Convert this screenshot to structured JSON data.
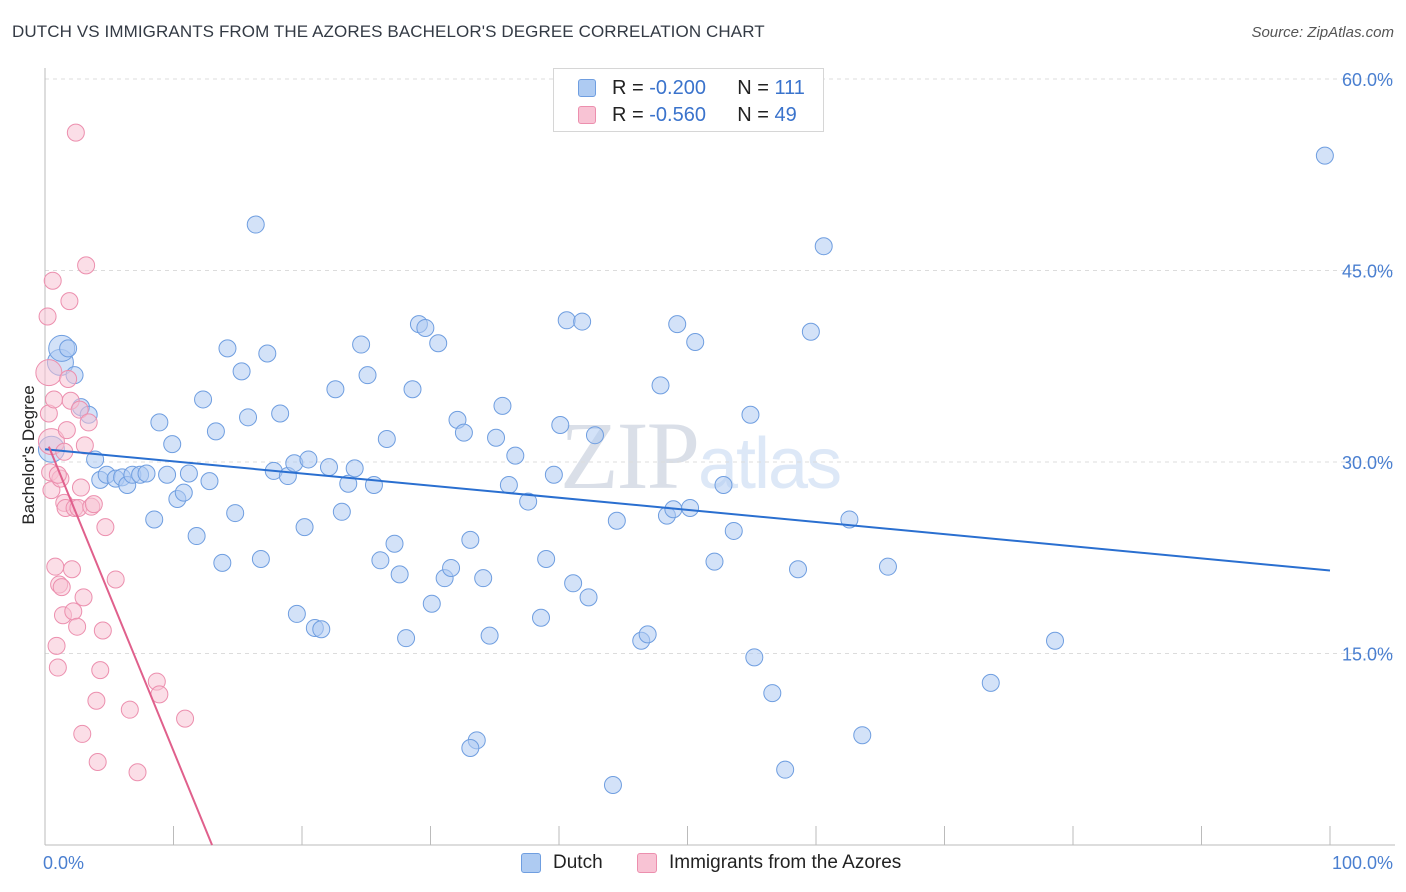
{
  "title": "DUTCH VS IMMIGRANTS FROM THE AZORES BACHELOR'S DEGREE CORRELATION CHART",
  "source": "Source: ZipAtlas.com",
  "watermark": {
    "part1": "ZIP",
    "part2": "atlas"
  },
  "legend": {
    "rows": [
      {
        "r_label": "R = ",
        "r_value": "-0.200",
        "n_label": "N = ",
        "n_value": "111",
        "color": "#aecbf2",
        "border": "#6f9ee0"
      },
      {
        "r_label": "R = ",
        "r_value": "-0.560",
        "n_label": "N = ",
        "n_value": "49",
        "color": "#f8c3d4",
        "border": "#ec8fae"
      }
    ]
  },
  "bottom_legend": [
    {
      "label": "Dutch",
      "color": "#aecbf2",
      "border": "#6f9ee0"
    },
    {
      "label": "Immigrants from the Azores",
      "color": "#f8c3d4",
      "border": "#ec8fae"
    }
  ],
  "chart_data": {
    "type": "scatter",
    "title": "DUTCH VS IMMIGRANTS FROM THE AZORES BACHELOR'S DEGREE CORRELATION CHART",
    "xlabel": "",
    "ylabel": "Bachelor's Degree",
    "xlim": [
      0,
      100
    ],
    "ylim": [
      0,
      60
    ],
    "x_tick_labels": [
      {
        "value": 0,
        "label": "0.0%"
      },
      {
        "value": 100,
        "label": "100.0%"
      }
    ],
    "y_tick_labels": [
      {
        "value": 15,
        "label": "15.0%"
      },
      {
        "value": 30,
        "label": "30.0%"
      },
      {
        "value": 45,
        "label": "45.0%"
      },
      {
        "value": 60,
        "label": "60.0%"
      }
    ],
    "series": [
      {
        "name": "Dutch",
        "color": "#aecbf2",
        "stroke": "#6f9ee0",
        "trend": {
          "x": [
            0,
            100
          ],
          "y": [
            31.0,
            21.5
          ],
          "color": "#2a6fd0"
        },
        "points": [
          {
            "x": 0.5,
            "y": 31.0,
            "big": true
          },
          {
            "x": 1.2,
            "y": 37.8,
            "big": true
          },
          {
            "x": 1.3,
            "y": 38.9,
            "big": true
          },
          {
            "x": 1.8,
            "y": 38.9
          },
          {
            "x": 2.3,
            "y": 36.8
          },
          {
            "x": 2.8,
            "y": 34.3
          },
          {
            "x": 3.4,
            "y": 33.7
          },
          {
            "x": 3.9,
            "y": 30.2
          },
          {
            "x": 4.3,
            "y": 28.6
          },
          {
            "x": 4.8,
            "y": 29.0
          },
          {
            "x": 5.5,
            "y": 28.7
          },
          {
            "x": 6.0,
            "y": 28.8
          },
          {
            "x": 6.4,
            "y": 28.2
          },
          {
            "x": 6.8,
            "y": 29.0
          },
          {
            "x": 7.4,
            "y": 29.0
          },
          {
            "x": 7.9,
            "y": 29.1
          },
          {
            "x": 8.5,
            "y": 25.5
          },
          {
            "x": 8.9,
            "y": 33.1
          },
          {
            "x": 9.5,
            "y": 29.0
          },
          {
            "x": 9.9,
            "y": 31.4
          },
          {
            "x": 10.3,
            "y": 27.1
          },
          {
            "x": 10.8,
            "y": 27.6
          },
          {
            "x": 11.2,
            "y": 29.1
          },
          {
            "x": 11.8,
            "y": 24.2
          },
          {
            "x": 12.3,
            "y": 34.9
          },
          {
            "x": 12.8,
            "y": 28.5
          },
          {
            "x": 13.3,
            "y": 32.4
          },
          {
            "x": 13.8,
            "y": 22.1
          },
          {
            "x": 14.2,
            "y": 38.9
          },
          {
            "x": 14.8,
            "y": 26.0
          },
          {
            "x": 15.3,
            "y": 37.1
          },
          {
            "x": 15.8,
            "y": 33.5
          },
          {
            "x": 16.4,
            "y": 48.6
          },
          {
            "x": 16.8,
            "y": 22.4
          },
          {
            "x": 17.3,
            "y": 38.5
          },
          {
            "x": 17.8,
            "y": 29.3
          },
          {
            "x": 18.3,
            "y": 33.8
          },
          {
            "x": 18.9,
            "y": 28.9
          },
          {
            "x": 19.4,
            "y": 29.9
          },
          {
            "x": 19.6,
            "y": 18.1
          },
          {
            "x": 20.2,
            "y": 24.9
          },
          {
            "x": 20.5,
            "y": 30.2
          },
          {
            "x": 21.0,
            "y": 17.0
          },
          {
            "x": 21.5,
            "y": 16.9
          },
          {
            "x": 22.1,
            "y": 29.6
          },
          {
            "x": 22.6,
            "y": 35.7
          },
          {
            "x": 23.1,
            "y": 26.1
          },
          {
            "x": 23.6,
            "y": 28.3
          },
          {
            "x": 24.1,
            "y": 29.5
          },
          {
            "x": 24.6,
            "y": 39.2
          },
          {
            "x": 25.1,
            "y": 36.8
          },
          {
            "x": 25.6,
            "y": 28.2
          },
          {
            "x": 26.1,
            "y": 22.3
          },
          {
            "x": 26.6,
            "y": 31.8
          },
          {
            "x": 27.2,
            "y": 23.6
          },
          {
            "x": 27.6,
            "y": 21.2
          },
          {
            "x": 28.1,
            "y": 16.2
          },
          {
            "x": 28.6,
            "y": 35.7
          },
          {
            "x": 29.1,
            "y": 40.8
          },
          {
            "x": 29.6,
            "y": 40.5
          },
          {
            "x": 30.1,
            "y": 18.9
          },
          {
            "x": 30.6,
            "y": 39.3
          },
          {
            "x": 31.1,
            "y": 20.9
          },
          {
            "x": 31.6,
            "y": 21.7
          },
          {
            "x": 32.1,
            "y": 33.3
          },
          {
            "x": 32.6,
            "y": 32.3
          },
          {
            "x": 33.1,
            "y": 23.9
          },
          {
            "x": 33.6,
            "y": 8.2
          },
          {
            "x": 34.1,
            "y": 20.9
          },
          {
            "x": 34.6,
            "y": 16.4
          },
          {
            "x": 35.1,
            "y": 31.9
          },
          {
            "x": 35.6,
            "y": 34.4
          },
          {
            "x": 36.1,
            "y": 28.2
          },
          {
            "x": 36.6,
            "y": 30.5
          },
          {
            "x": 37.6,
            "y": 26.9
          },
          {
            "x": 38.6,
            "y": 17.8
          },
          {
            "x": 39.0,
            "y": 22.4
          },
          {
            "x": 39.6,
            "y": 29.0
          },
          {
            "x": 40.1,
            "y": 32.9
          },
          {
            "x": 40.6,
            "y": 41.1
          },
          {
            "x": 41.1,
            "y": 20.5
          },
          {
            "x": 41.8,
            "y": 41.0
          },
          {
            "x": 42.3,
            "y": 19.4
          },
          {
            "x": 42.8,
            "y": 32.1
          },
          {
            "x": 44.2,
            "y": 4.7
          },
          {
            "x": 44.5,
            "y": 25.4
          },
          {
            "x": 46.4,
            "y": 16.0
          },
          {
            "x": 46.9,
            "y": 16.5
          },
          {
            "x": 47.9,
            "y": 36.0
          },
          {
            "x": 48.4,
            "y": 25.8
          },
          {
            "x": 48.9,
            "y": 26.3
          },
          {
            "x": 49.2,
            "y": 40.8
          },
          {
            "x": 50.2,
            "y": 26.4
          },
          {
            "x": 50.6,
            "y": 39.4
          },
          {
            "x": 52.1,
            "y": 22.2
          },
          {
            "x": 52.8,
            "y": 28.2
          },
          {
            "x": 53.6,
            "y": 24.6
          },
          {
            "x": 54.9,
            "y": 33.7
          },
          {
            "x": 55.2,
            "y": 14.7
          },
          {
            "x": 56.6,
            "y": 11.9
          },
          {
            "x": 57.6,
            "y": 5.9
          },
          {
            "x": 58.6,
            "y": 21.6
          },
          {
            "x": 59.6,
            "y": 40.2
          },
          {
            "x": 60.6,
            "y": 46.9
          },
          {
            "x": 62.6,
            "y": 25.5
          },
          {
            "x": 63.6,
            "y": 8.6
          },
          {
            "x": 65.6,
            "y": 21.8
          },
          {
            "x": 73.6,
            "y": 12.7
          },
          {
            "x": 78.6,
            "y": 16.0
          },
          {
            "x": 99.6,
            "y": 54.0
          },
          {
            "x": 33.1,
            "y": 7.6
          }
        ]
      },
      {
        "name": "Immigrants from the Azores",
        "color": "#f8c3d4",
        "stroke": "#ec8fae",
        "trend": {
          "x": [
            0.3,
            13.0
          ],
          "y": [
            31.2,
            0.0
          ],
          "color": "#e0608c"
        },
        "points": [
          {
            "x": 0.3,
            "y": 37.0,
            "big": true
          },
          {
            "x": 0.5,
            "y": 31.6,
            "big": true
          },
          {
            "x": 0.2,
            "y": 41.4
          },
          {
            "x": 0.3,
            "y": 33.8
          },
          {
            "x": 0.4,
            "y": 29.2
          },
          {
            "x": 0.5,
            "y": 27.8
          },
          {
            "x": 0.6,
            "y": 44.2
          },
          {
            "x": 0.7,
            "y": 34.9
          },
          {
            "x": 0.8,
            "y": 21.8
          },
          {
            "x": 0.9,
            "y": 15.6
          },
          {
            "x": 1.0,
            "y": 13.9
          },
          {
            "x": 1.1,
            "y": 20.4
          },
          {
            "x": 1.2,
            "y": 28.7
          },
          {
            "x": 1.3,
            "y": 20.2
          },
          {
            "x": 1.4,
            "y": 18.0
          },
          {
            "x": 1.5,
            "y": 26.8
          },
          {
            "x": 1.6,
            "y": 26.4
          },
          {
            "x": 1.7,
            "y": 32.5
          },
          {
            "x": 1.8,
            "y": 36.5
          },
          {
            "x": 1.9,
            "y": 42.6
          },
          {
            "x": 2.0,
            "y": 34.8
          },
          {
            "x": 2.1,
            "y": 21.6
          },
          {
            "x": 2.2,
            "y": 18.3
          },
          {
            "x": 2.3,
            "y": 26.4
          },
          {
            "x": 2.4,
            "y": 55.8
          },
          {
            "x": 2.5,
            "y": 17.1
          },
          {
            "x": 2.6,
            "y": 26.4
          },
          {
            "x": 2.7,
            "y": 34.1
          },
          {
            "x": 2.8,
            "y": 28.0
          },
          {
            "x": 2.9,
            "y": 8.7
          },
          {
            "x": 3.0,
            "y": 19.4
          },
          {
            "x": 3.1,
            "y": 31.3
          },
          {
            "x": 3.2,
            "y": 45.4
          },
          {
            "x": 3.4,
            "y": 33.1
          },
          {
            "x": 3.6,
            "y": 26.5
          },
          {
            "x": 3.8,
            "y": 26.7
          },
          {
            "x": 4.0,
            "y": 11.3
          },
          {
            "x": 4.1,
            "y": 6.5
          },
          {
            "x": 4.3,
            "y": 13.7
          },
          {
            "x": 4.5,
            "y": 16.8
          },
          {
            "x": 4.7,
            "y": 24.9
          },
          {
            "x": 5.5,
            "y": 20.8
          },
          {
            "x": 6.6,
            "y": 10.6
          },
          {
            "x": 7.2,
            "y": 5.7
          },
          {
            "x": 8.7,
            "y": 12.8
          },
          {
            "x": 8.9,
            "y": 11.8
          },
          {
            "x": 10.9,
            "y": 9.9
          },
          {
            "x": 1.0,
            "y": 29.0
          },
          {
            "x": 1.5,
            "y": 30.8
          }
        ]
      }
    ]
  }
}
